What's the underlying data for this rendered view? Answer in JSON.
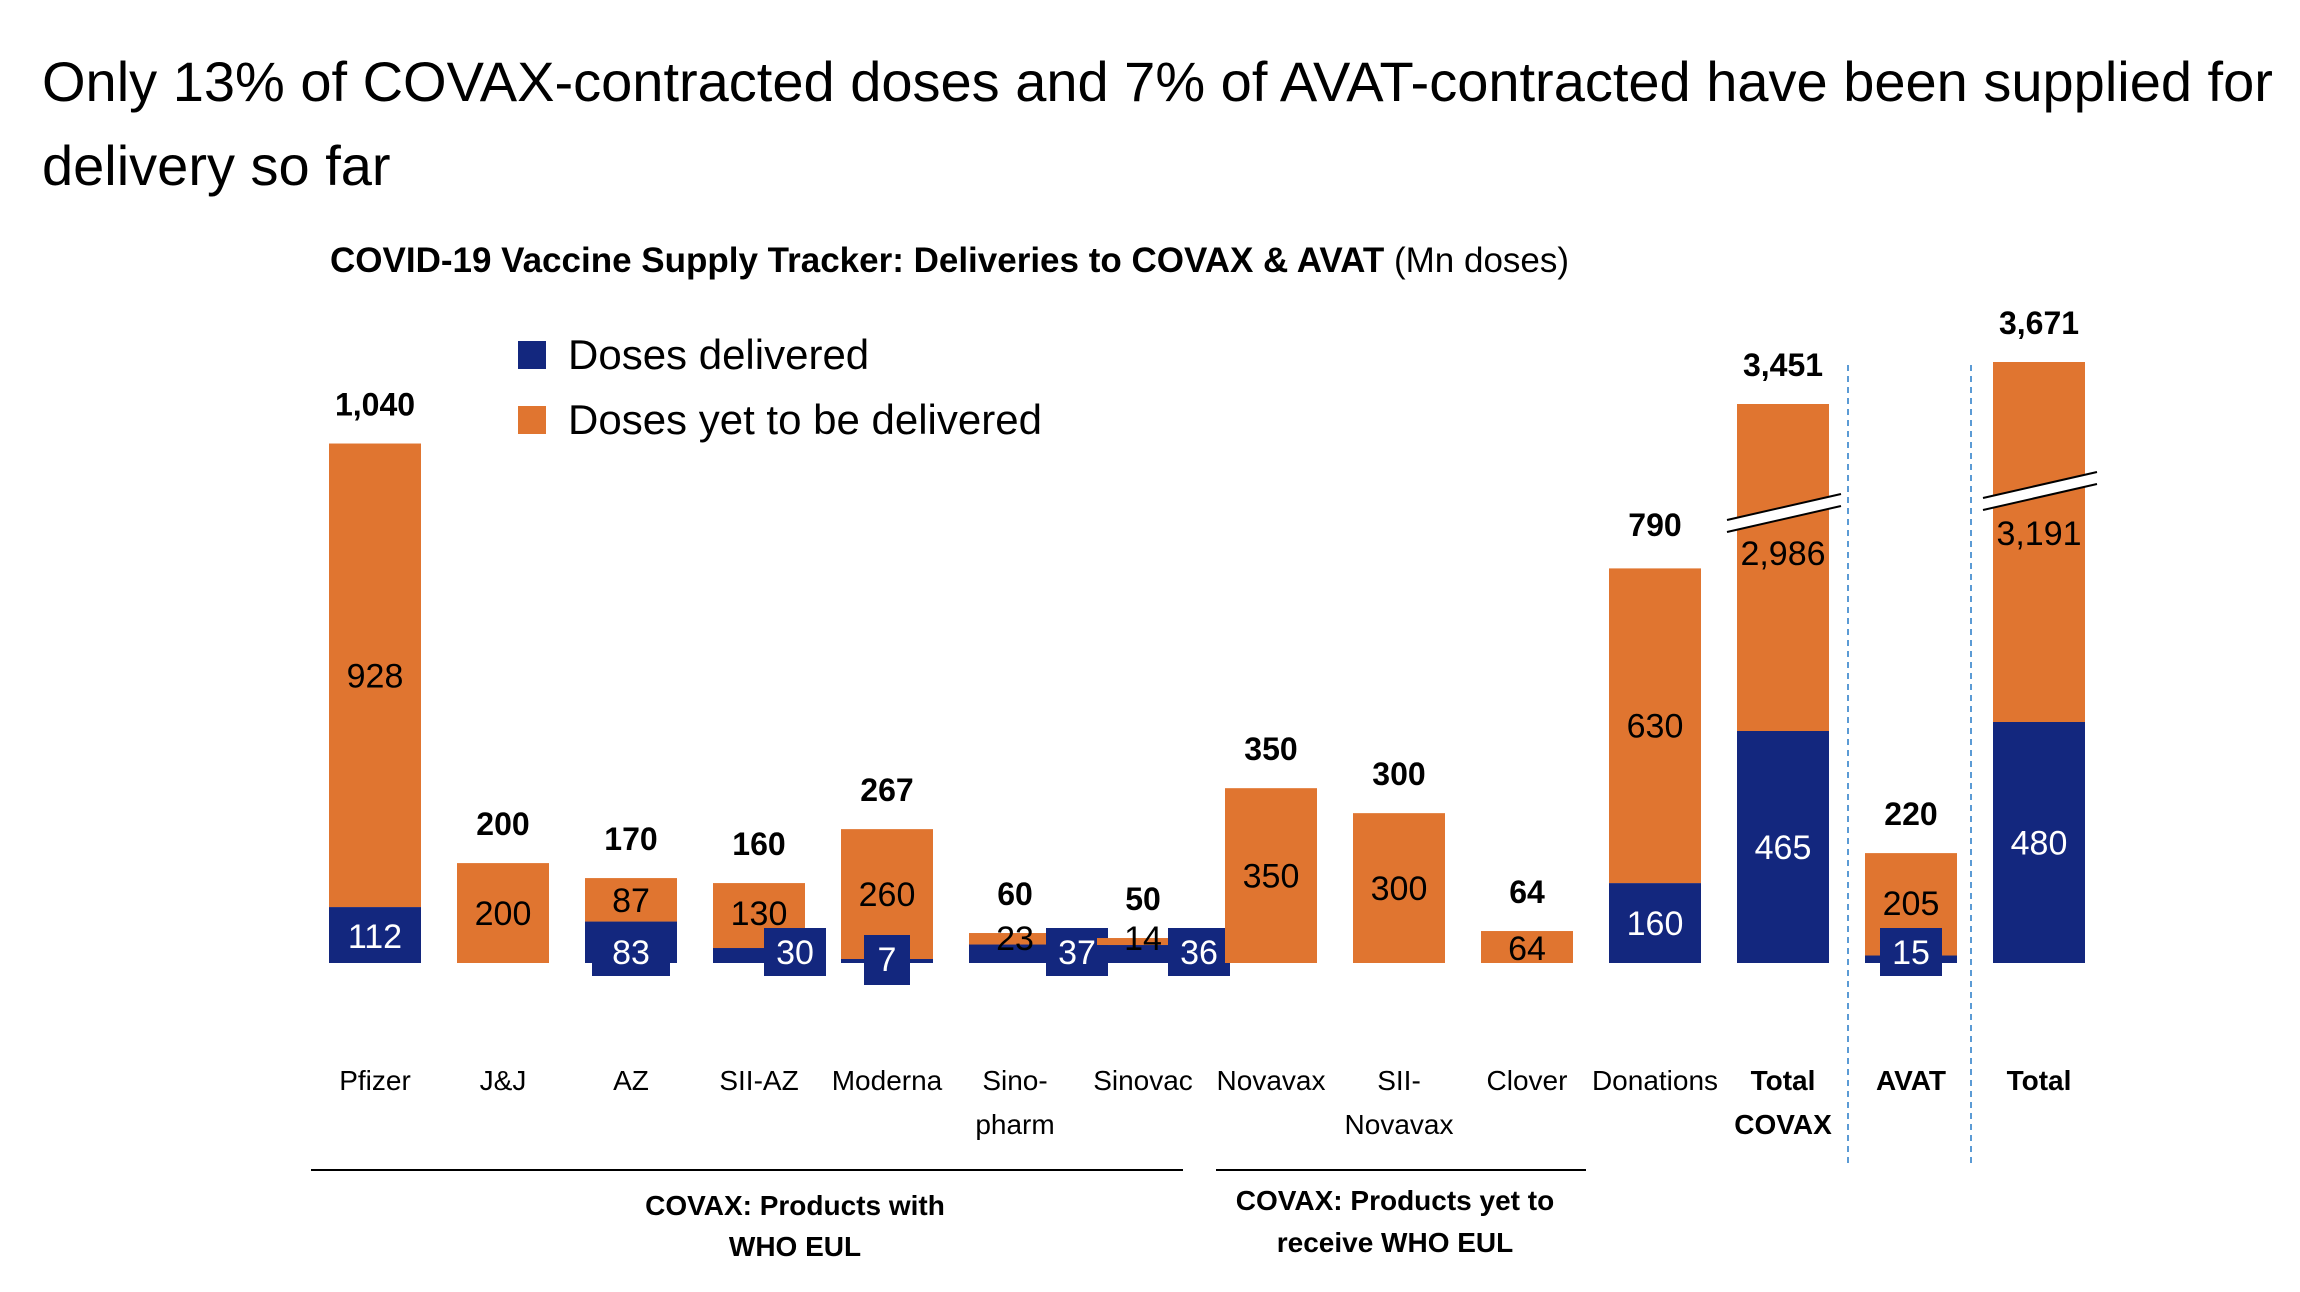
{
  "headline": "Only 13% of COVAX-contracted doses and 7% of AVAT-contracted have been supplied for delivery so far",
  "chart_data": {
    "type": "bar",
    "stacked": true,
    "title_bold": "COVID-19 Vaccine Supply Tracker: Deliveries to COVAX & AVAT",
    "title_unit": "(Mn doses)",
    "legend_position": "top-left",
    "grid": false,
    "categories": [
      {
        "line1": "Pfizer",
        "line2": "",
        "bold": false
      },
      {
        "line1": "J&J",
        "line2": "",
        "bold": false
      },
      {
        "line1": "AZ",
        "line2": "",
        "bold": false
      },
      {
        "line1": "SII-AZ",
        "line2": "",
        "bold": false
      },
      {
        "line1": "Moderna",
        "line2": "",
        "bold": false
      },
      {
        "line1": "Sino-",
        "line2": "pharm",
        "bold": false
      },
      {
        "line1": "Sinovac",
        "line2": "",
        "bold": false
      },
      {
        "line1": "Novavax",
        "line2": "",
        "bold": false
      },
      {
        "line1": "SII-",
        "line2": "Novavax",
        "bold": false
      },
      {
        "line1": "Clover",
        "line2": "",
        "bold": false
      },
      {
        "line1": "Donations",
        "line2": "",
        "bold": false
      },
      {
        "line1": "Total",
        "line2": "COVAX",
        "bold": true
      },
      {
        "line1": "AVAT",
        "line2": "",
        "bold": true
      },
      {
        "line1": "Total",
        "line2": "",
        "bold": true
      }
    ],
    "series": [
      {
        "name": "Doses delivered",
        "color": "#13277e",
        "values": [
          112,
          0,
          83,
          30,
          7,
          37,
          36,
          0,
          0,
          0,
          160,
          465,
          15,
          480
        ],
        "labels": [
          "112",
          "",
          "83",
          "30",
          "7",
          "37",
          "36",
          "",
          "",
          "",
          "160",
          "465",
          "15",
          "480"
        ]
      },
      {
        "name": "Doses yet to be delivered",
        "color": "#e07530",
        "values": [
          928,
          200,
          87,
          130,
          260,
          23,
          14,
          350,
          300,
          64,
          630,
          2986,
          205,
          3191
        ],
        "labels": [
          "928",
          "200",
          "87",
          "130",
          "260",
          "23",
          "14",
          "350",
          "300",
          "64",
          "630",
          "2,986",
          "205",
          "3,191"
        ]
      }
    ],
    "totals": [
      "1,040",
      "200",
      "170",
      "160",
      "267",
      "60",
      "50",
      "350",
      "300",
      "64",
      "790",
      "3,451",
      "220",
      "3,671"
    ],
    "axis_breaks": [
      "Total COVAX",
      "Total"
    ],
    "groups": [
      {
        "line1": "COVAX: Products with",
        "line2": "WHO EUL"
      },
      {
        "line1": "COVAX: Products yet to",
        "line2": "receive WHO EUL"
      }
    ]
  }
}
